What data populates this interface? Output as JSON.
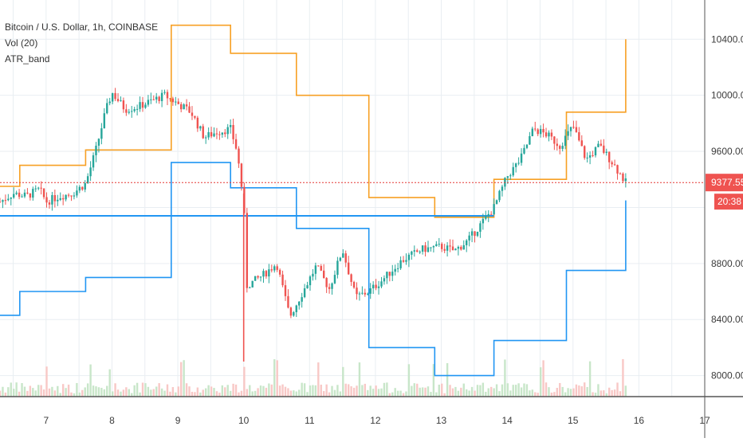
{
  "legend": {
    "symbol": "Bitcoin / U.S. Dollar, 1h, COINBASE",
    "volume": "Vol (20)",
    "indicator": "ATR_band"
  },
  "price_tags": {
    "last_price": "9377.55",
    "countdown": "20:38"
  },
  "colors": {
    "up_candle": "#26a69a",
    "down_candle": "#ef5350",
    "upper_band": "#f7a024",
    "lower_band": "#2196f3",
    "last_price_line": "#e53935",
    "tag_background": "#ef5350",
    "volume_up": "#c8e6c9",
    "volume_down": "#f8c8c6",
    "grid": "#e9eef2"
  },
  "chart_data": {
    "type": "line",
    "title": "Bitcoin / U.S. Dollar, 1h, COINBASE",
    "x_ticks": [
      "7",
      "8",
      "9",
      "10",
      "11",
      "12",
      "13",
      "14",
      "15",
      "16",
      "17"
    ],
    "y_ticks": [
      "8000.00",
      "8400.00",
      "8800.00",
      "9600.00",
      "10000.00",
      "10400.00"
    ],
    "xlim": [
      6.3,
      17.0
    ],
    "ylim": [
      7850,
      10680
    ],
    "grid": true,
    "last_price": 9377.55,
    "series": [
      {
        "name": "ATR_band",
        "role": "upper",
        "points": [
          [
            6.3,
            9350
          ],
          [
            6.6,
            9350
          ],
          [
            6.6,
            9500
          ],
          [
            7.6,
            9500
          ],
          [
            7.6,
            9610
          ],
          [
            8.9,
            9610
          ],
          [
            8.9,
            10500
          ],
          [
            9.8,
            10500
          ],
          [
            9.8,
            10300
          ],
          [
            10.8,
            10300
          ],
          [
            10.8,
            10000
          ],
          [
            11.9,
            10000
          ],
          [
            11.9,
            9270
          ],
          [
            12.9,
            9270
          ],
          [
            12.9,
            9130
          ],
          [
            13.8,
            9130
          ],
          [
            13.8,
            9400
          ],
          [
            14.9,
            9400
          ],
          [
            14.9,
            9880
          ],
          [
            15.8,
            9880
          ],
          [
            15.8,
            10400
          ]
        ]
      },
      {
        "name": "ATR_band",
        "role": "lower",
        "points": [
          [
            6.3,
            8430
          ],
          [
            6.6,
            8430
          ],
          [
            6.6,
            8600
          ],
          [
            7.6,
            8600
          ],
          [
            7.6,
            8700
          ],
          [
            8.9,
            8700
          ],
          [
            8.9,
            9520
          ],
          [
            9.8,
            9520
          ],
          [
            9.8,
            9340
          ],
          [
            10.8,
            9340
          ],
          [
            10.8,
            9050
          ],
          [
            11.9,
            9050
          ],
          [
            11.9,
            8200
          ],
          [
            12.9,
            8200
          ],
          [
            12.9,
            8000
          ],
          [
            13.8,
            8000
          ],
          [
            13.8,
            8250
          ],
          [
            14.9,
            8250
          ],
          [
            14.9,
            8750
          ],
          [
            15.8,
            8750
          ],
          [
            15.8,
            9250
          ]
        ]
      },
      {
        "name": "",
        "role": "horizontal-line",
        "points": [
          [
            6.3,
            9140
          ],
          [
            13.8,
            9140
          ]
        ]
      },
      {
        "name": "Bitcoin / U.S. Dollar",
        "role": "close",
        "points": [
          [
            6.3,
            9240
          ],
          [
            6.5,
            9300
          ],
          [
            6.7,
            9280
          ],
          [
            6.9,
            9330
          ],
          [
            7.0,
            9240
          ],
          [
            7.2,
            9280
          ],
          [
            7.4,
            9300
          ],
          [
            7.6,
            9370
          ],
          [
            7.75,
            9600
          ],
          [
            7.9,
            9880
          ],
          [
            8.0,
            10020
          ],
          [
            8.2,
            9900
          ],
          [
            8.4,
            9920
          ],
          [
            8.6,
            9960
          ],
          [
            8.8,
            10000
          ],
          [
            9.0,
            9940
          ],
          [
            9.2,
            9880
          ],
          [
            9.4,
            9700
          ],
          [
            9.6,
            9740
          ],
          [
            9.8,
            9760
          ],
          [
            9.9,
            9600
          ],
          [
            10.0,
            9230
          ],
          [
            10.05,
            8640
          ],
          [
            10.3,
            8720
          ],
          [
            10.5,
            8800
          ],
          [
            10.7,
            8420
          ],
          [
            10.9,
            8600
          ],
          [
            11.1,
            8780
          ],
          [
            11.3,
            8620
          ],
          [
            11.5,
            8900
          ],
          [
            11.7,
            8560
          ],
          [
            11.9,
            8600
          ],
          [
            12.1,
            8680
          ],
          [
            12.4,
            8820
          ],
          [
            12.7,
            8900
          ],
          [
            13.0,
            8920
          ],
          [
            13.2,
            8890
          ],
          [
            13.4,
            8960
          ],
          [
            13.6,
            9080
          ],
          [
            13.8,
            9200
          ],
          [
            14.0,
            9420
          ],
          [
            14.2,
            9540
          ],
          [
            14.4,
            9760
          ],
          [
            14.6,
            9720
          ],
          [
            14.8,
            9640
          ],
          [
            15.0,
            9780
          ],
          [
            15.2,
            9540
          ],
          [
            15.4,
            9640
          ],
          [
            15.6,
            9520
          ],
          [
            15.8,
            9377.55
          ]
        ]
      }
    ],
    "volume_note": "volume histogram along bottom"
  }
}
